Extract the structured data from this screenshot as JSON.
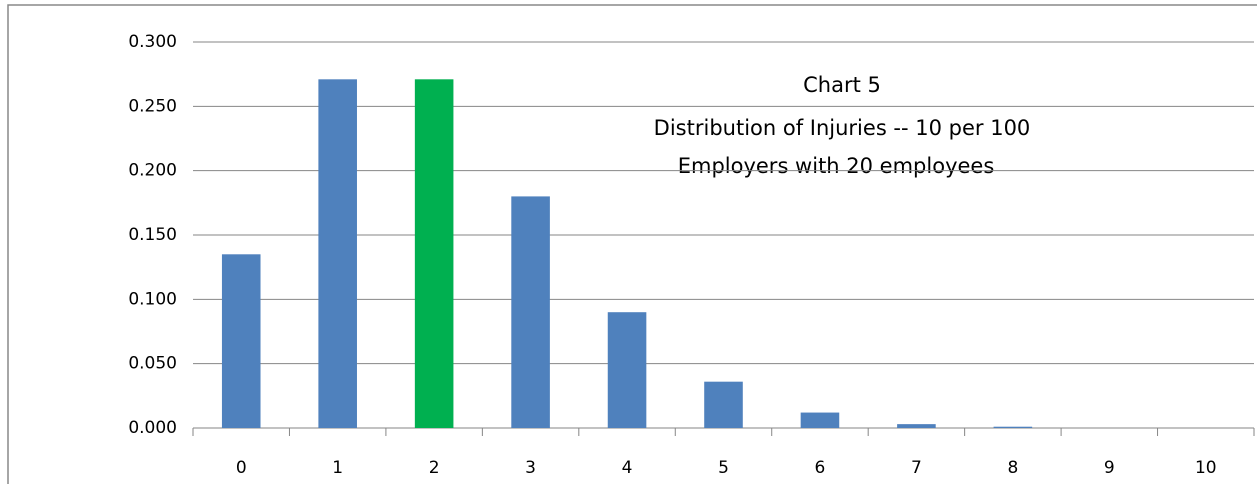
{
  "chart_data": {
    "type": "bar",
    "title": "Chart 5",
    "subtitle": [
      "Distribution of Injuries  -- 10 per 100",
      "Employers with 20 employees"
    ],
    "categories": [
      "0",
      "1",
      "2",
      "3",
      "4",
      "5",
      "6",
      "7",
      "8",
      "9",
      "10"
    ],
    "values": [
      0.135,
      0.271,
      0.271,
      0.18,
      0.09,
      0.036,
      0.012,
      0.003,
      0.001,
      0,
      0
    ],
    "colors": [
      "#4f81bd",
      "#4f81bd",
      "#00b050",
      "#4f81bd",
      "#4f81bd",
      "#4f81bd",
      "#4f81bd",
      "#4f81bd",
      "#4f81bd",
      "#4f81bd",
      "#4f81bd"
    ],
    "ylim": [
      0,
      0.3
    ],
    "yticks": [
      {
        "value": 0,
        "label": "0.000"
      },
      {
        "value": 0.05,
        "label": "0.050"
      },
      {
        "value": 0.1,
        "label": "0.100"
      },
      {
        "value": 0.15,
        "label": "0.150"
      },
      {
        "value": 0.2,
        "label": "0.200"
      },
      {
        "value": 0.25,
        "label": "0.250"
      },
      {
        "value": 0.3,
        "label": "0.300"
      }
    ],
    "grid": true
  }
}
